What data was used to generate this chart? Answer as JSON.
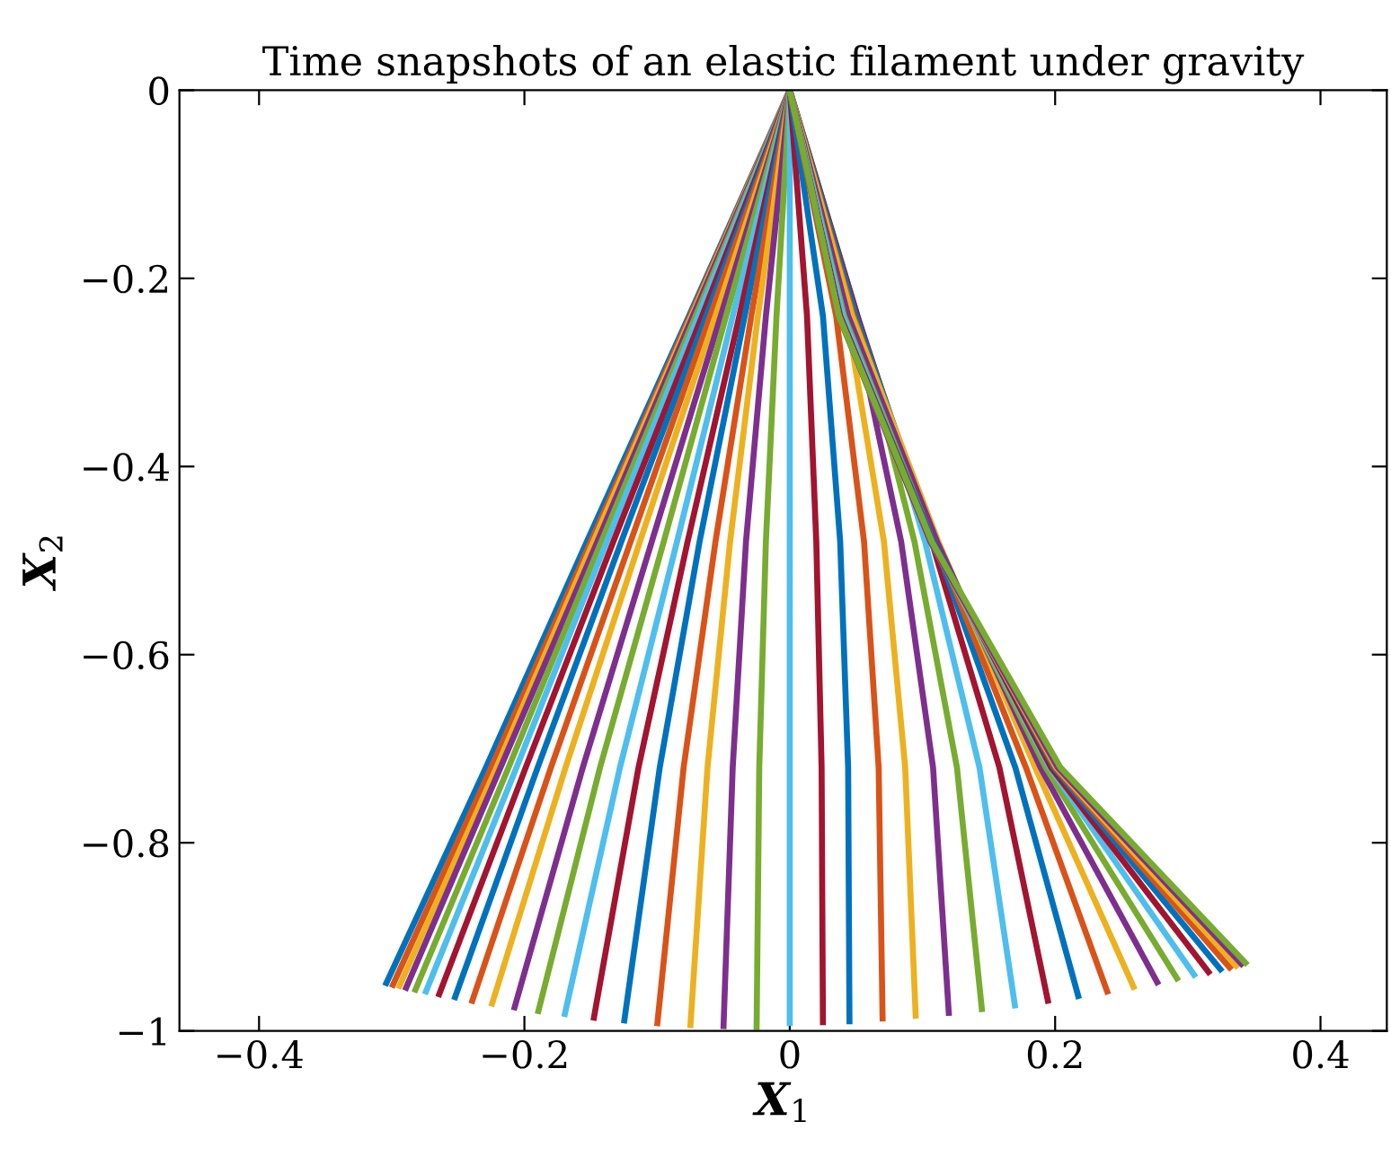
{
  "chart_data": {
    "type": "line",
    "title": "Time snapshots of an elastic filament under gravity",
    "xlabel": "X$_{1}$",
    "ylabel": "X$_{2}$",
    "xlim": [
      -0.46,
      0.45
    ],
    "ylim": [
      -1,
      0
    ],
    "xticks": [
      {
        "value": -0.4,
        "label": "−0.4"
      },
      {
        "value": -0.2,
        "label": "−0.2"
      },
      0,
      0.2,
      0.4
    ],
    "yticks": [
      {
        "value": -1,
        "label": "−1"
      },
      {
        "value": -0.8,
        "label": "−0.8"
      },
      {
        "value": -0.6,
        "label": "−0.6"
      },
      {
        "value": -0.4,
        "label": "−0.4"
      },
      {
        "value": -0.2,
        "label": "−0.2"
      },
      0
    ],
    "grid": false,
    "legend": false,
    "marker": "none",
    "line_style": "solid",
    "series": [
      {
        "color": "#0072bd",
        "x": [
          0,
          -0.076,
          -0.153,
          -0.229,
          -0.305
        ],
        "values": [
          0,
          -0.24,
          -0.48,
          -0.72,
          -0.952
        ]
      },
      {
        "color": "#d95319",
        "x": [
          0,
          -0.075,
          -0.15,
          -0.225,
          -0.3
        ],
        "values": [
          0,
          -0.24,
          -0.48,
          -0.72,
          -0.954
        ]
      },
      {
        "color": "#edb120",
        "x": [
          0,
          -0.074,
          -0.148,
          -0.221,
          -0.295
        ],
        "values": [
          0,
          -0.24,
          -0.48,
          -0.72,
          -0.955
        ]
      },
      {
        "color": "#7e2f8e",
        "x": [
          0,
          -0.073,
          -0.145,
          -0.218,
          -0.29
        ],
        "values": [
          0,
          -0.24,
          -0.48,
          -0.72,
          -0.957
        ]
      },
      {
        "color": "#77ac30",
        "x": [
          0,
          -0.071,
          -0.142,
          -0.212,
          -0.283
        ],
        "values": [
          0,
          -0.24,
          -0.48,
          -0.72,
          -0.959
        ]
      },
      {
        "color": "#4dbeee",
        "x": [
          0,
          -0.069,
          -0.138,
          -0.206,
          -0.275
        ],
        "values": [
          0,
          -0.24,
          -0.48,
          -0.72,
          -0.961
        ]
      },
      {
        "color": "#a2142f",
        "x": [
          0,
          -0.066,
          -0.133,
          -0.199,
          -0.265
        ],
        "values": [
          0,
          -0.24,
          -0.48,
          -0.72,
          -0.964
        ]
      },
      {
        "color": "#0072bd",
        "x": [
          0,
          -0.063,
          -0.127,
          -0.19,
          -0.253
        ],
        "values": [
          0,
          -0.24,
          -0.48,
          -0.72,
          -0.967
        ]
      },
      {
        "color": "#d95319",
        "x": [
          0,
          -0.06,
          -0.12,
          -0.18,
          -0.24
        ],
        "values": [
          0,
          -0.24,
          -0.48,
          -0.72,
          -0.971
        ]
      },
      {
        "color": "#edb120",
        "x": [
          0,
          -0.056,
          -0.113,
          -0.169,
          -0.225
        ],
        "values": [
          0,
          -0.24,
          -0.48,
          -0.72,
          -0.974
        ]
      },
      {
        "color": "#7e2f8e",
        "x": [
          0,
          -0.052,
          -0.104,
          -0.156,
          -0.208
        ],
        "values": [
          0,
          -0.24,
          -0.48,
          -0.72,
          -0.978
        ]
      },
      {
        "color": "#77ac30",
        "x": [
          0,
          -0.048,
          -0.095,
          -0.143,
          -0.19
        ],
        "values": [
          0,
          -0.24,
          -0.48,
          -0.72,
          -0.982
        ]
      },
      {
        "color": "#4dbeee",
        "x": [
          0,
          -0.043,
          -0.085,
          -0.128,
          -0.17
        ],
        "values": [
          0,
          -0.24,
          -0.48,
          -0.72,
          -0.985
        ]
      },
      {
        "color": "#a2142f",
        "x": [
          0,
          -0.038,
          -0.077,
          -0.114,
          -0.148
        ],
        "values": [
          0,
          -0.24,
          -0.48,
          -0.72,
          -0.989
        ]
      },
      {
        "color": "#0072bd",
        "x": [
          0,
          -0.034,
          -0.068,
          -0.098,
          -0.125
        ],
        "values": [
          0,
          -0.24,
          -0.48,
          -0.72,
          -0.992
        ]
      },
      {
        "color": "#d95319",
        "x": [
          0,
          -0.029,
          -0.056,
          -0.08,
          -0.1
        ],
        "values": [
          0,
          -0.24,
          -0.48,
          -0.72,
          -0.995
        ]
      },
      {
        "color": "#edb120",
        "x": [
          0,
          -0.024,
          -0.045,
          -0.062,
          -0.075
        ],
        "values": [
          0,
          -0.24,
          -0.48,
          -0.72,
          -0.997
        ]
      },
      {
        "color": "#7e2f8e",
        "x": [
          0,
          -0.018,
          -0.033,
          -0.043,
          -0.05
        ],
        "values": [
          0,
          -0.24,
          -0.48,
          -0.72,
          -0.998
        ]
      },
      {
        "color": "#77ac30",
        "x": [
          0,
          -0.01,
          -0.018,
          -0.023,
          -0.025
        ],
        "values": [
          0,
          -0.24,
          -0.48,
          -0.72,
          -0.999
        ]
      },
      {
        "color": "#4dbeee",
        "x": [
          0,
          0,
          0,
          0,
          0
        ],
        "values": [
          0,
          -0.24,
          -0.48,
          -0.72,
          -0.995
        ]
      },
      {
        "color": "#a2142f",
        "x": [
          0,
          0.013,
          0.02,
          0.024,
          0.025
        ],
        "values": [
          0,
          -0.24,
          -0.48,
          -0.72,
          -0.994
        ]
      },
      {
        "color": "#0072bd",
        "x": [
          0,
          0.025,
          0.038,
          0.044,
          0.045
        ],
        "values": [
          0,
          -0.24,
          -0.48,
          -0.72,
          -0.993
        ]
      },
      {
        "color": "#d95319",
        "x": [
          0,
          0.035,
          0.056,
          0.067,
          0.07
        ],
        "values": [
          0,
          -0.24,
          -0.48,
          -0.72,
          -0.99
        ]
      },
      {
        "color": "#edb120",
        "x": [
          0,
          0.043,
          0.071,
          0.087,
          0.095
        ],
        "values": [
          0,
          -0.24,
          -0.48,
          -0.72,
          -0.987
        ]
      },
      {
        "color": "#7e2f8e",
        "x": [
          0,
          0.048,
          0.084,
          0.108,
          0.12
        ],
        "values": [
          0,
          -0.24,
          -0.48,
          -0.72,
          -0.984
        ]
      },
      {
        "color": "#77ac30",
        "x": [
          0,
          0.051,
          0.094,
          0.126,
          0.145
        ],
        "values": [
          0,
          -0.24,
          -0.48,
          -0.72,
          -0.98
        ]
      },
      {
        "color": "#4dbeee",
        "x": [
          0,
          0.051,
          0.102,
          0.143,
          0.17
        ],
        "values": [
          0,
          -0.24,
          -0.48,
          -0.72,
          -0.976
        ]
      },
      {
        "color": "#a2142f",
        "x": [
          0,
          0.051,
          0.107,
          0.158,
          0.195
        ],
        "values": [
          0,
          -0.24,
          -0.48,
          -0.72,
          -0.971
        ]
      },
      {
        "color": "#0072bd",
        "x": [
          0,
          0.05,
          0.109,
          0.17,
          0.218
        ],
        "values": [
          0,
          -0.24,
          -0.48,
          -0.72,
          -0.966
        ]
      },
      {
        "color": "#d95319",
        "x": [
          0,
          0.048,
          0.11,
          0.178,
          0.24
        ],
        "values": [
          0,
          -0.24,
          -0.48,
          -0.72,
          -0.961
        ]
      },
      {
        "color": "#edb120",
        "x": [
          0,
          0.047,
          0.112,
          0.185,
          0.26
        ],
        "values": [
          0,
          -0.24,
          -0.48,
          -0.72,
          -0.956
        ]
      },
      {
        "color": "#7e2f8e",
        "x": [
          0,
          0.044,
          0.111,
          0.189,
          0.278
        ],
        "values": [
          0,
          -0.24,
          -0.48,
          -0.72,
          -0.951
        ]
      },
      {
        "color": "#77ac30",
        "x": [
          0,
          0.041,
          0.108,
          0.193,
          0.293
        ],
        "values": [
          0,
          -0.24,
          -0.48,
          -0.72,
          -0.947
        ]
      },
      {
        "color": "#4dbeee",
        "x": [
          0,
          0.04,
          0.107,
          0.196,
          0.306
        ],
        "values": [
          0,
          -0.24,
          -0.48,
          -0.72,
          -0.943
        ]
      },
      {
        "color": "#a2142f",
        "x": [
          0,
          0.038,
          0.108,
          0.197,
          0.317
        ],
        "values": [
          0,
          -0.24,
          -0.48,
          -0.72,
          -0.94
        ]
      },
      {
        "color": "#0072bd",
        "x": [
          0,
          0.037,
          0.108,
          0.199,
          0.326
        ],
        "values": [
          0,
          -0.24,
          -0.48,
          -0.72,
          -0.937
        ]
      },
      {
        "color": "#d95319",
        "x": [
          0,
          0.037,
          0.107,
          0.2,
          0.333
        ],
        "values": [
          0,
          -0.24,
          -0.48,
          -0.72,
          -0.935
        ]
      },
      {
        "color": "#edb120",
        "x": [
          0,
          0.037,
          0.106,
          0.201,
          0.338
        ],
        "values": [
          0,
          -0.24,
          -0.48,
          -0.72,
          -0.933
        ]
      },
      {
        "color": "#7e2f8e",
        "x": [
          0,
          0.037,
          0.106,
          0.202,
          0.342
        ],
        "values": [
          0,
          -0.24,
          -0.48,
          -0.72,
          -0.931
        ]
      },
      {
        "color": "#77ac30",
        "x": [
          0,
          0.037,
          0.107,
          0.204,
          0.345
        ],
        "values": [
          0,
          -0.24,
          -0.48,
          -0.72,
          -0.93
        ]
      }
    ]
  }
}
